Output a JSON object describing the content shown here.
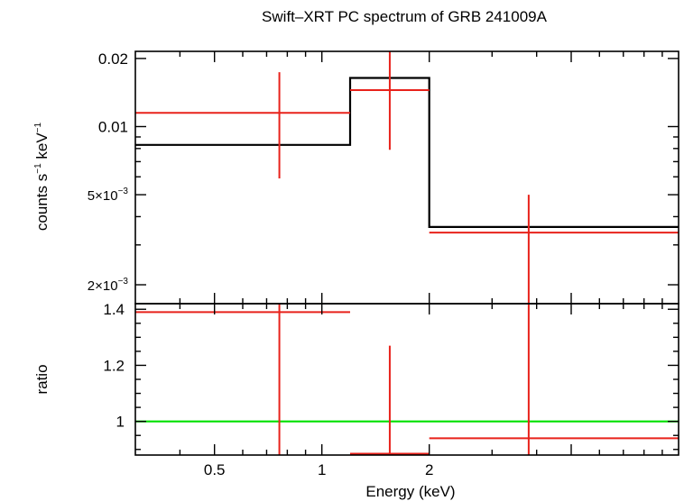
{
  "chart_data": [
    {
      "type": "line",
      "panel": "spectrum",
      "title": "Swift–XRT PC spectrum of GRB 241009A",
      "ylabel_parts": {
        "a": "counts s",
        "a_sup": "−1",
        "b": " keV",
        "b_sup": "−1"
      },
      "yscale": "log",
      "ylim": [
        0.00165,
        0.0215
      ],
      "yticks": [
        {
          "value": 0.02,
          "label": "0.02"
        },
        {
          "value": 0.01,
          "label": "0.01"
        },
        {
          "value": 0.005,
          "label": "5×10",
          "sup": "−3"
        },
        {
          "value": 0.002,
          "label": "2×10",
          "sup": "−3"
        }
      ],
      "model": {
        "color": "#000000",
        "bins": [
          {
            "x0": 0.3,
            "x1": 1.2,
            "y": 0.0083
          },
          {
            "x0": 1.2,
            "x1": 2.0,
            "y": 0.0164
          },
          {
            "x0": 2.0,
            "x1": 10.0,
            "y": 0.0036
          }
        ]
      },
      "data": {
        "color": "#e8221b",
        "points": [
          {
            "x0": 0.3,
            "x1": 1.2,
            "xc": 0.76,
            "y": 0.0115,
            "ylo": 0.0059,
            "yhi": 0.0174
          },
          {
            "x0": 1.2,
            "x1": 2.0,
            "xc": 1.55,
            "y": 0.0145,
            "ylo": 0.0079,
            "yhi": 0.0215
          },
          {
            "x0": 2.0,
            "x1": 10.0,
            "xc": 3.8,
            "y": 0.0034,
            "ylo": 0.00165,
            "yhi": 0.005
          }
        ]
      }
    },
    {
      "type": "line",
      "panel": "ratio",
      "ylabel": "ratio",
      "xlabel": "Energy (keV)",
      "xscale": "log",
      "xlim": [
        0.3,
        10.0
      ],
      "xticks": [
        {
          "value": 0.5,
          "label": "0.5"
        },
        {
          "value": 1,
          "label": "1"
        },
        {
          "value": 2,
          "label": "2"
        }
      ],
      "ylim": [
        0.88,
        1.42
      ],
      "yticks": [
        {
          "value": 1.4,
          "label": "1.4"
        },
        {
          "value": 1.2,
          "label": "1.2"
        },
        {
          "value": 1.0,
          "label": "1"
        }
      ],
      "reference_line": {
        "y": 1.0,
        "color": "#00e000"
      },
      "data": {
        "color": "#e8221b",
        "points": [
          {
            "x0": 0.3,
            "x1": 1.2,
            "xc": 0.76,
            "y": 1.39,
            "ylo": 0.88,
            "yhi": 1.42
          },
          {
            "x0": 1.2,
            "x1": 2.0,
            "xc": 1.55,
            "y": 0.885,
            "ylo": 0.88,
            "yhi": 1.27
          },
          {
            "x0": 2.0,
            "x1": 10.0,
            "xc": 3.8,
            "y": 0.94,
            "ylo": 0.88,
            "yhi": 1.42
          }
        ]
      }
    }
  ]
}
